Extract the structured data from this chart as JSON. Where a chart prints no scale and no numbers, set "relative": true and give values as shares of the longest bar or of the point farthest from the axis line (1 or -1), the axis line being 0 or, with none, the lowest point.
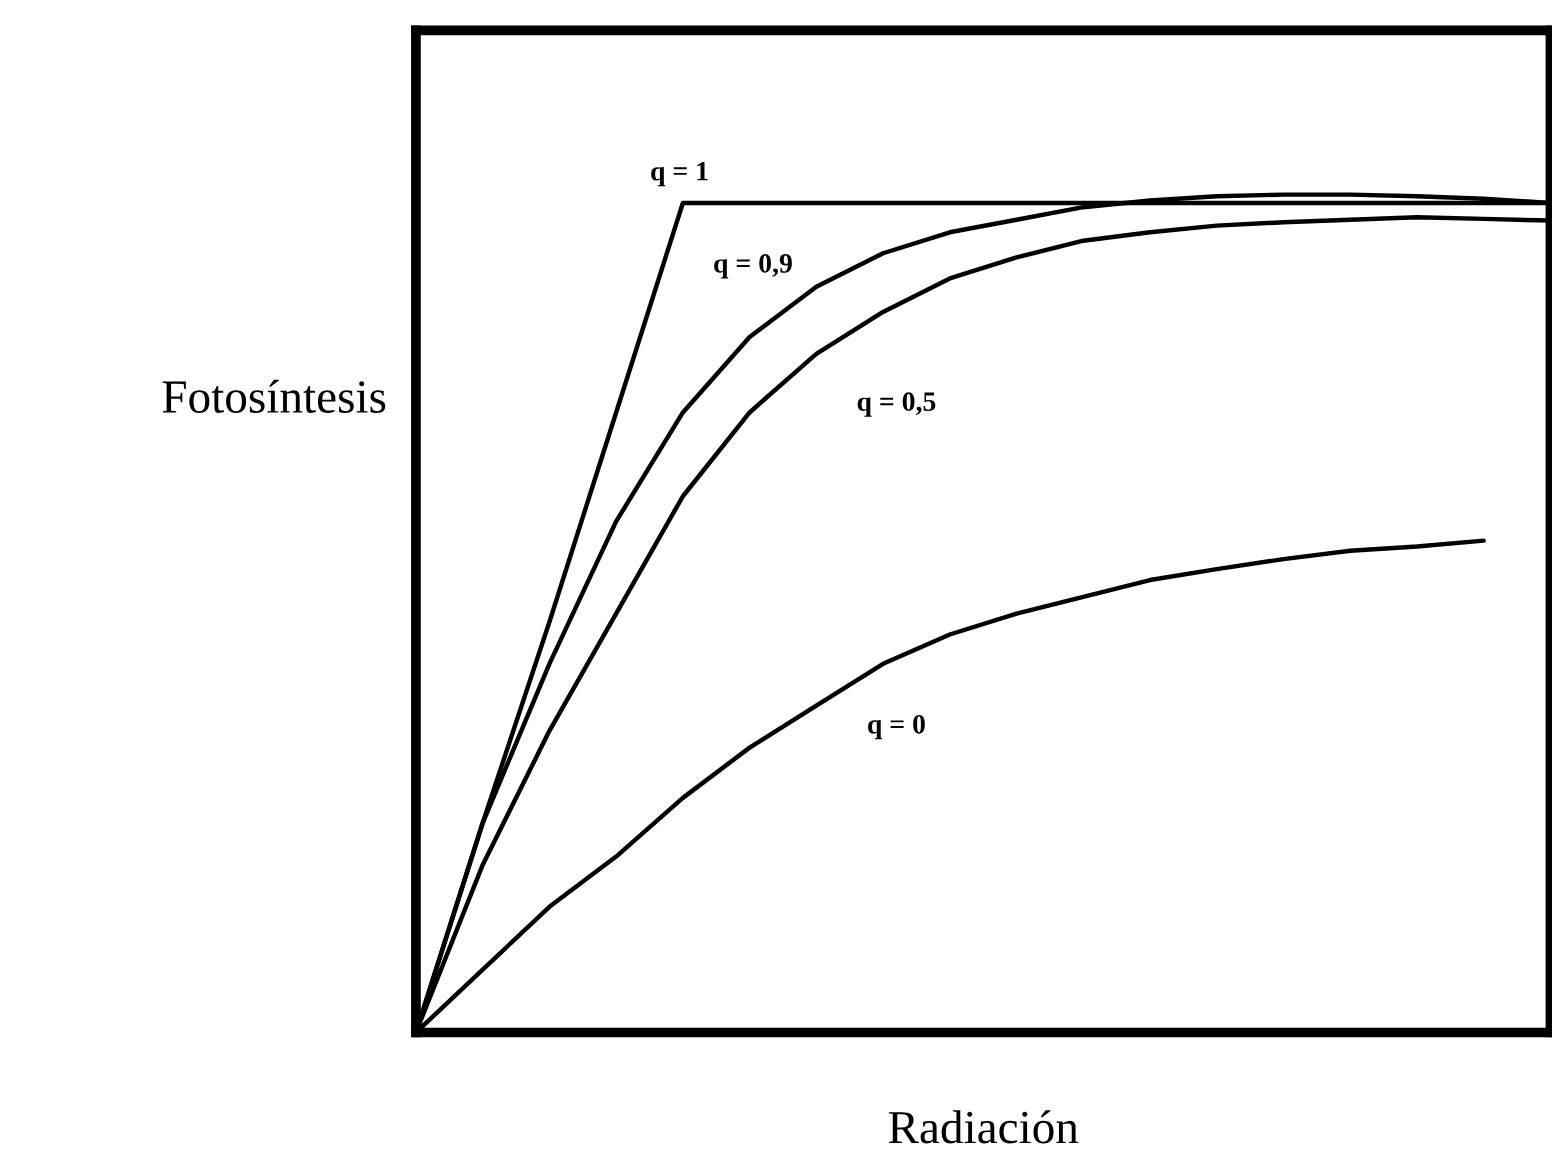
{
  "chart_data": {
    "type": "line",
    "relative": true,
    "xlabel": "Radiación",
    "ylabel": "Fotosíntesis",
    "categories": [
      null,
      null,
      null,
      null,
      null,
      null,
      null,
      null,
      null,
      null,
      null,
      null,
      null,
      null,
      null,
      null,
      null,
      null
    ],
    "series": [
      {
        "name": "q = 1",
        "color": "#000000",
        "values": [
          0,
          0.25,
          0.49,
          0.74,
          0.99,
          0.99,
          0.99,
          0.99,
          0.99,
          0.99,
          0.99,
          0.99,
          0.99,
          0.99,
          0.99,
          0.99,
          0.99,
          0.99
        ]
      },
      {
        "name": "q = 0,9",
        "color": "#000000",
        "values": [
          0,
          0.25,
          0.44,
          0.61,
          0.74,
          0.83,
          0.89,
          0.93,
          0.955,
          0.97,
          0.985,
          0.993,
          0.998,
          1.0,
          1.0,
          0.998,
          0.995,
          0.99
        ]
      },
      {
        "name": "q = 0,5",
        "color": "#000000",
        "values": [
          0,
          0.2,
          0.36,
          0.5,
          0.64,
          0.74,
          0.81,
          0.86,
          0.9,
          0.925,
          0.945,
          0.955,
          0.963,
          0.967,
          0.97,
          0.973,
          0.971,
          0.969
        ]
      },
      {
        "name": "q = 0",
        "color": "#000000",
        "values": [
          0,
          0.075,
          0.15,
          0.21,
          0.28,
          0.34,
          0.39,
          0.44,
          0.475,
          0.5,
          0.52,
          0.54,
          0.553,
          0.565,
          0.575,
          0.58,
          0.587,
          null
        ]
      }
    ],
    "marker": "none",
    "line_style": "solid"
  }
}
